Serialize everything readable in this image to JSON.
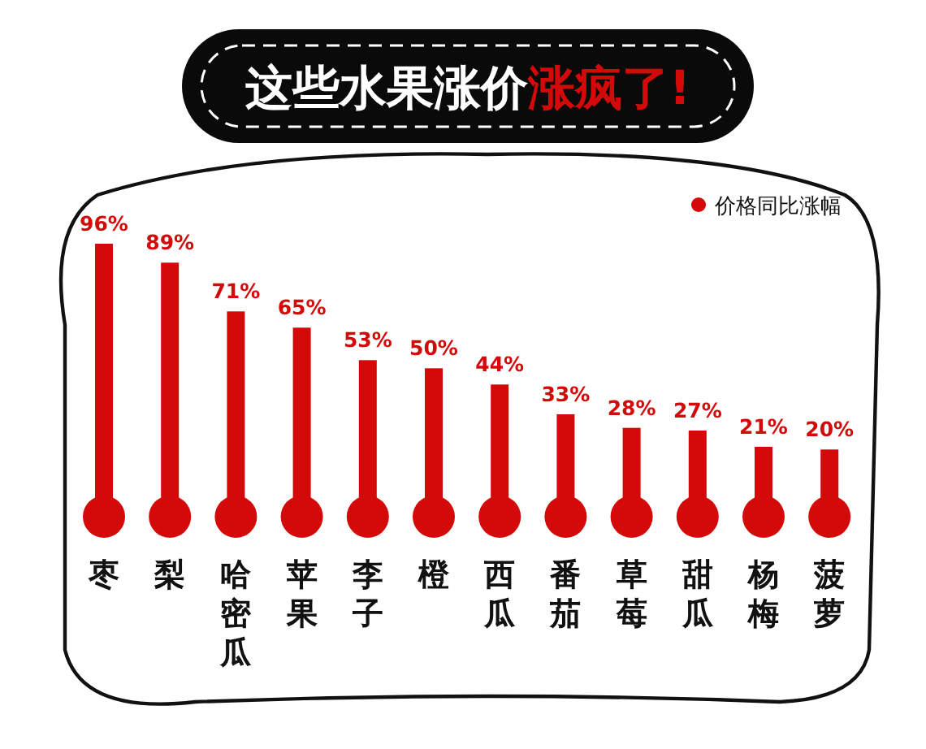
{
  "chart_data": {
    "type": "bar",
    "title": "这些水果涨价涨疯了!",
    "categories": [
      "枣",
      "梨",
      "哈密瓜",
      "苹果",
      "李子",
      "橙",
      "西瓜",
      "番茄",
      "草莓",
      "甜瓜",
      "杨梅",
      "菠萝"
    ],
    "series": [
      {
        "name": "价格同比涨幅",
        "color": "#d40a0a",
        "values": [
          96,
          89,
          71,
          65,
          53,
          50,
          44,
          33,
          28,
          27,
          21,
          20
        ],
        "value_labels": [
          "96%",
          "89%",
          "71%",
          "65%",
          "53%",
          "50%",
          "44%",
          "33%",
          "28%",
          "27%",
          "21%",
          "20%"
        ]
      }
    ],
    "legend": "top right"
  }
}
